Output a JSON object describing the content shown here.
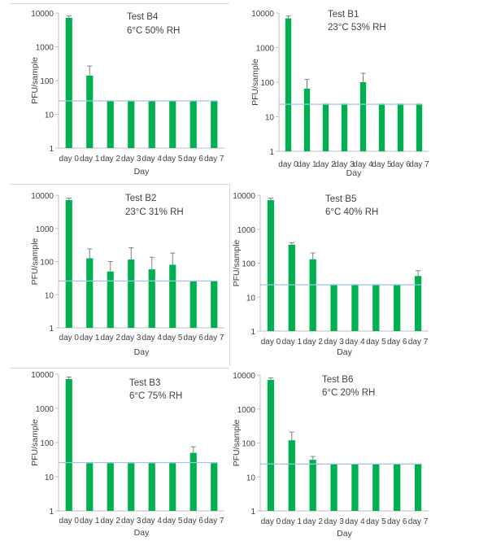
{
  "colors": {
    "bar": "#00b050",
    "threshold": "#9dc3e6",
    "axis": "#bfbfbf",
    "text": "#404040",
    "errorbar": "#7f7f7f"
  },
  "chart_data": [
    {
      "type": "bar",
      "title": "Test B4",
      "subtitle": "6°C 50% RH",
      "xlabel": "Day",
      "ylabel": "PFU/sample",
      "yscale": "log",
      "ylim": [
        1,
        10000
      ],
      "yticks": [
        "1",
        "10",
        "100",
        "1000",
        "10000"
      ],
      "grid": false,
      "categories": [
        "day 0",
        "day 1",
        "day 2",
        "day 3",
        "day 4",
        "day 5",
        "day 6",
        "day 7"
      ],
      "values": [
        7200,
        140,
        25,
        25,
        25,
        25,
        25,
        25
      ],
      "error_upper": [
        8300,
        270,
        null,
        null,
        null,
        null,
        null,
        null
      ],
      "threshold": 25
    },
    {
      "type": "bar",
      "title": "Test B1",
      "subtitle": "23°C 53% RH",
      "xlabel": "Day",
      "ylabel": "PFU/sample",
      "yscale": "log",
      "ylim": [
        1,
        10000
      ],
      "yticks": [
        "1",
        "10",
        "100",
        "1000",
        "10000"
      ],
      "grid": false,
      "categories": [
        "day 0",
        "day 1",
        "day 2",
        "day 3",
        "day 4",
        "day 5",
        "day 6",
        "day 7"
      ],
      "values": [
        7000,
        65,
        24,
        24,
        100,
        24,
        24,
        24
      ],
      "error_upper": [
        8200,
        120,
        null,
        null,
        180,
        null,
        null,
        null
      ],
      "threshold": 23
    },
    {
      "type": "bar",
      "title": "Test B2",
      "subtitle": "23°C 31% RH",
      "xlabel": "Day",
      "ylabel": "PFU/sample",
      "yscale": "log",
      "ylim": [
        1,
        10000
      ],
      "yticks": [
        "1",
        "10",
        "100",
        "1000",
        "10000"
      ],
      "grid": false,
      "categories": [
        "day 0",
        "day 1",
        "day 2",
        "day 3",
        "day 4",
        "day 5",
        "day 6",
        "day 7"
      ],
      "values": [
        7200,
        125,
        50,
        115,
        58,
        80,
        25,
        25
      ],
      "error_upper": [
        8200,
        240,
        100,
        260,
        135,
        180,
        null,
        null
      ],
      "threshold": 26
    },
    {
      "type": "bar",
      "title": "Test B5",
      "subtitle": "6°C 40% RH",
      "xlabel": "Day",
      "ylabel": "PFU/sample",
      "yscale": "log",
      "ylim": [
        1,
        10000
      ],
      "yticks": [
        "1",
        "10",
        "100",
        "1000",
        "10000"
      ],
      "grid": false,
      "categories": [
        "day 0",
        "day 1",
        "day 2",
        "day 3",
        "day 4",
        "day 5",
        "day 6",
        "day 7"
      ],
      "values": [
        7200,
        350,
        130,
        24,
        24,
        24,
        24,
        42
      ],
      "error_upper": [
        8200,
        400,
        200,
        null,
        null,
        null,
        null,
        60
      ],
      "threshold": 23
    },
    {
      "type": "bar",
      "title": "Test B3",
      "subtitle": "6°C 75% RH",
      "xlabel": "Day",
      "ylabel": "PFU/sample",
      "yscale": "log",
      "ylim": [
        1,
        10000
      ],
      "yticks": [
        "1",
        "10",
        "100",
        "1000",
        "10000"
      ],
      "grid": false,
      "categories": [
        "day 0",
        "day 1",
        "day 2",
        "day 3",
        "day 4",
        "day 5",
        "day 6",
        "day 7"
      ],
      "values": [
        7200,
        25,
        25,
        25,
        25,
        25,
        50,
        25
      ],
      "error_upper": [
        8300,
        null,
        null,
        null,
        null,
        null,
        75,
        null
      ],
      "threshold": 26
    },
    {
      "type": "bar",
      "title": "Test B6",
      "subtitle": "6°C 20% RH",
      "xlabel": "Day",
      "ylabel": "PFU/sample",
      "yscale": "log",
      "ylim": [
        1,
        10000
      ],
      "yticks": [
        "1",
        "10",
        "100",
        "1000",
        "10000"
      ],
      "grid": false,
      "categories": [
        "day 0",
        "day 1",
        "day 2",
        "day 3",
        "day 4",
        "day 5",
        "day 6",
        "day 7"
      ],
      "values": [
        7200,
        120,
        32,
        24,
        24,
        24,
        24,
        24
      ],
      "error_upper": [
        8200,
        210,
        40,
        null,
        null,
        null,
        null,
        null
      ],
      "threshold": 24
    }
  ]
}
